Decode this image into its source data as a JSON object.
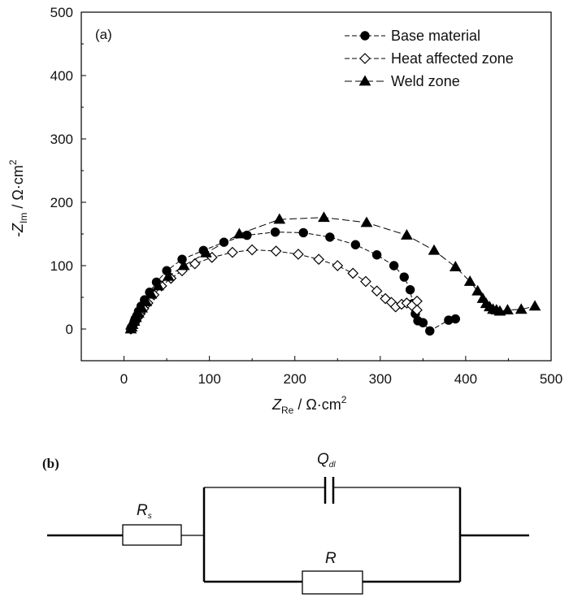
{
  "chart_data": {
    "type": "scatter",
    "panel_label": "(a)",
    "xlabel": {
      "main": "Z",
      "sub": "Re",
      "unit": " / Ω·cm",
      "sup": "2"
    },
    "ylabel": {
      "main": "-Z",
      "sub": "Im",
      "unit": " / Ω·cm",
      "sup": "2"
    },
    "xlim": [
      -50,
      500
    ],
    "ylim": [
      -50,
      500
    ],
    "xticks": [
      0,
      100,
      200,
      300,
      400,
      500
    ],
    "yticks": [
      0,
      100,
      200,
      300,
      400,
      500
    ],
    "grid": false,
    "legend_position": "top-right",
    "series": [
      {
        "name": "Base material",
        "marker": "circle-filled",
        "x": [
          8,
          9,
          10,
          11,
          12,
          13,
          15,
          17,
          20,
          24,
          30,
          38,
          50,
          68,
          93,
          117,
          144,
          177,
          210,
          241,
          271,
          296,
          316,
          328,
          335,
          338,
          341,
          344,
          350,
          358,
          380,
          388
        ],
        "y": [
          0,
          2,
          5,
          8,
          12,
          16,
          21,
          28,
          36,
          46,
          58,
          74,
          92,
          110,
          124,
          137,
          148,
          153,
          152,
          145,
          133,
          117,
          100,
          82,
          62,
          40,
          24,
          13,
          10,
          -3,
          14,
          16
        ]
      },
      {
        "name": "Heat affected zone",
        "marker": "diamond-open",
        "x": [
          8,
          9,
          10,
          12,
          14,
          16,
          19,
          23,
          28,
          35,
          44,
          55,
          68,
          83,
          103,
          127,
          150,
          178,
          204,
          228,
          250,
          268,
          283,
          296,
          306,
          313,
          318,
          325,
          331,
          337,
          343,
          343
        ],
        "y": [
          0,
          3,
          6,
          9,
          13,
          18,
          24,
          32,
          41,
          54,
          68,
          80,
          92,
          103,
          113,
          121,
          125,
          123,
          118,
          110,
          100,
          88,
          75,
          60,
          48,
          42,
          35,
          39,
          41,
          37,
          44,
          30
        ]
      },
      {
        "name": "Weld zone",
        "marker": "triangle-filled",
        "x": [
          8,
          9,
          10,
          12,
          14,
          17,
          21,
          26,
          32,
          40,
          52,
          70,
          96,
          135,
          182,
          234,
          284,
          331,
          363,
          388,
          405,
          414,
          420,
          424,
          428,
          432,
          436,
          440,
          449,
          465,
          481
        ],
        "y": [
          0,
          3,
          7,
          12,
          18,
          25,
          33,
          43,
          55,
          68,
          83,
          100,
          120,
          150,
          173,
          176,
          168,
          148,
          124,
          98,
          75,
          60,
          48,
          40,
          35,
          31,
          30,
          28,
          30,
          31,
          36
        ]
      }
    ]
  },
  "circuit": {
    "panel_label": "(b)",
    "resistor_s": {
      "main": "R",
      "sub": "s"
    },
    "cpe": {
      "main": "Q",
      "sub": "dl"
    },
    "resistor_ct": {
      "main": "R",
      "sub": ""
    }
  }
}
